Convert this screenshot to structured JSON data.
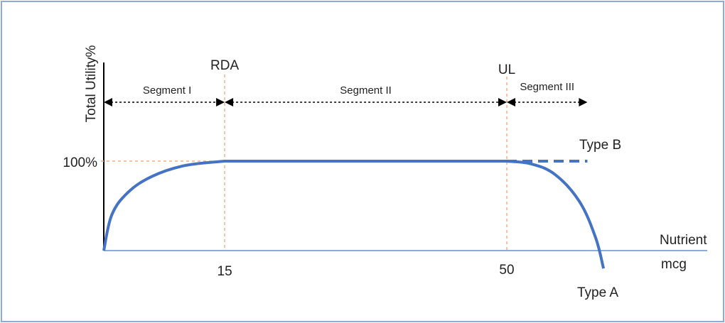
{
  "chart_data": {
    "type": "line",
    "title": "",
    "ylabel": "Total Utility%",
    "xlabel": "Nutrient",
    "xunit": "mcg",
    "xlim": [
      0,
      62
    ],
    "ylim": [
      0,
      100
    ],
    "x_ticks": [
      {
        "value": 15,
        "label": "15"
      },
      {
        "value": 50,
        "label": "50"
      }
    ],
    "y_ticks": [
      {
        "value": 100,
        "label": "100%"
      }
    ],
    "reference_lines": [
      {
        "x": 15,
        "label": "RDA"
      },
      {
        "x": 50,
        "label": "UL"
      }
    ],
    "segments": [
      {
        "label": "Segment I",
        "from": 0,
        "to": 15
      },
      {
        "label": "Segment II",
        "from": 15,
        "to": 50
      },
      {
        "label": "Segment III",
        "from": 50,
        "to": 60
      }
    ],
    "series": [
      {
        "name": "Type A",
        "style": "solid",
        "points": [
          [
            0,
            0
          ],
          [
            1,
            40
          ],
          [
            3,
            65
          ],
          [
            6,
            83
          ],
          [
            10,
            95
          ],
          [
            15,
            100
          ],
          [
            50,
            100
          ],
          [
            53,
            97
          ],
          [
            56,
            85
          ],
          [
            59,
            55
          ],
          [
            61,
            15
          ],
          [
            62,
            -20
          ]
        ]
      },
      {
        "name": "Type B",
        "style": "dashed",
        "points": [
          [
            50,
            100
          ],
          [
            60,
            100
          ]
        ]
      }
    ]
  },
  "colors": {
    "curve": "#4472c4",
    "axis": "#000000",
    "x_axis_line": "#8eaadb",
    "guide": "#f4b183",
    "frame": "#8eaadb",
    "text": "#222222"
  }
}
